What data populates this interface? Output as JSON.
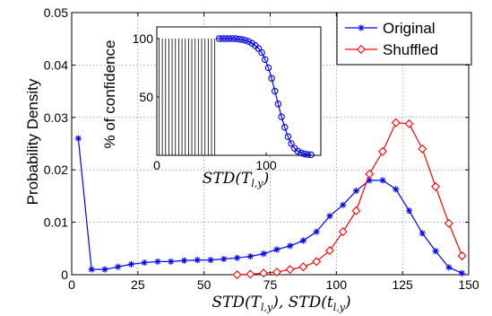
{
  "chart_data": [
    {
      "type": "line",
      "title": "",
      "xlabel": "STD(T_{l,y}), STD(t_{l,y})",
      "ylabel": "Probability Density",
      "xlim": [
        0,
        150
      ],
      "ylim": [
        0,
        0.05
      ],
      "grid": true,
      "legend": "top-right",
      "x_ticks": [
        "0",
        "25",
        "50",
        "75",
        "100",
        "125",
        "150"
      ],
      "y_ticks": [
        "0",
        "0.01",
        "0.02",
        "0.03",
        "0.04",
        "0.05"
      ],
      "series": [
        {
          "name": "Original",
          "color": "#0000ff",
          "marker": "asterisk",
          "x": [
            2.5,
            7.5,
            12.5,
            17.5,
            22.5,
            27.5,
            32.5,
            37.5,
            42.5,
            47.5,
            52.5,
            57.5,
            62.5,
            67.5,
            72.5,
            77.5,
            82.5,
            87.5,
            92.5,
            97.5,
            102.5,
            107.5,
            112.5,
            117.5,
            122.5,
            127.5,
            132.5,
            137.5,
            142.5,
            147.5
          ],
          "values": [
            0.026,
            0.001,
            0.001,
            0.0015,
            0.002,
            0.0023,
            0.0025,
            0.0025,
            0.0027,
            0.0028,
            0.0028,
            0.003,
            0.0032,
            0.0035,
            0.004,
            0.0048,
            0.0055,
            0.0065,
            0.0082,
            0.0112,
            0.0133,
            0.016,
            0.018,
            0.018,
            0.0163,
            0.0122,
            0.0079,
            0.0045,
            0.0014,
            0.0003
          ]
        },
        {
          "name": "Shuffled",
          "color": "#ff0000",
          "marker": "diamond",
          "x": [
            62.5,
            67.5,
            72.5,
            77.5,
            82.5,
            87.5,
            92.5,
            97.5,
            102.5,
            107.5,
            112.5,
            117.5,
            122.5,
            127.5,
            132.5,
            137.5,
            142.5,
            147.5
          ],
          "values": [
            0,
            0.0001,
            0.0003,
            0.0005,
            0.001,
            0.0015,
            0.0025,
            0.0046,
            0.0082,
            0.0122,
            0.0192,
            0.0235,
            0.029,
            0.0288,
            0.024,
            0.0168,
            0.0098,
            0.0036
          ]
        }
      ]
    },
    {
      "type": "line",
      "title": "",
      "xlabel": "STD(T_{l,y})",
      "ylabel": "% of confidence",
      "xlim": [
        0,
        150
      ],
      "ylim": [
        0,
        110
      ],
      "grid": false,
      "x_ticks": [
        "0",
        "100"
      ],
      "y_ticks": [
        "50",
        "100"
      ],
      "series": [
        {
          "name": "",
          "color": "#0000ff",
          "marker": "circle",
          "stems_below_x": 55,
          "x": [
            57,
            60,
            63,
            66,
            69,
            72,
            75,
            78,
            81,
            84,
            87,
            90,
            93,
            96,
            99,
            102,
            105,
            108,
            111,
            114,
            117,
            120,
            123,
            126,
            129,
            132,
            135,
            138,
            141
          ],
          "values": [
            100,
            100,
            100,
            100,
            100,
            100,
            99.5,
            99.2,
            98.5,
            97.5,
            96,
            94,
            91.5,
            88,
            82,
            75,
            66,
            55,
            44,
            33,
            24,
            16,
            10,
            6,
            3.5,
            2,
            1.2,
            0.7,
            0.5
          ]
        }
      ]
    }
  ]
}
